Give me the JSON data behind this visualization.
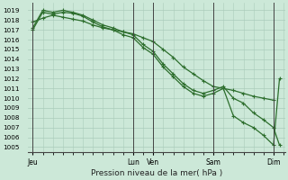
{
  "background_color": "#cce8d8",
  "grid_color": "#aaccbb",
  "line_color": "#2d6e2d",
  "title": "Pression niveau de la mer( hPa )",
  "ylabel_ticks": [
    1005,
    1006,
    1007,
    1008,
    1009,
    1010,
    1011,
    1012,
    1013,
    1014,
    1015,
    1016,
    1017,
    1018,
    1019
  ],
  "ylim": [
    1004.5,
    1019.8
  ],
  "x_day_labels": [
    "Jeu",
    "Lun",
    "Ven",
    "Sam",
    "Dim"
  ],
  "x_day_positions": [
    0,
    4.167,
    5.0,
    7.5,
    10.0
  ],
  "xlim": [
    -0.2,
    10.5
  ],
  "line1": {
    "x": [
      0,
      0.417,
      0.833,
      1.25,
      1.667,
      2.083,
      2.5,
      2.917,
      3.333,
      3.75,
      4.167,
      4.583,
      5.0,
      5.417,
      5.833,
      6.25,
      6.667,
      7.083,
      7.5,
      7.917,
      8.333,
      8.75,
      9.167,
      9.583,
      10.0
    ],
    "y": [
      1017.8,
      1018.2,
      1018.5,
      1018.3,
      1018.1,
      1017.9,
      1017.5,
      1017.2,
      1017.0,
      1016.8,
      1016.6,
      1016.2,
      1015.8,
      1015.0,
      1014.2,
      1013.2,
      1012.5,
      1011.8,
      1011.2,
      1011.0,
      1010.8,
      1010.5,
      1010.2,
      1010.0,
      1009.8
    ]
  },
  "line2": {
    "x": [
      0,
      0.417,
      0.833,
      1.25,
      1.667,
      2.083,
      2.5,
      2.917,
      3.333,
      3.75,
      4.167,
      4.583,
      5.0,
      5.417,
      5.833,
      6.25,
      6.667,
      7.083,
      7.5,
      7.917,
      8.333,
      8.75,
      9.167,
      9.583,
      10.0,
      10.25
    ],
    "y": [
      1017.2,
      1019.0,
      1018.8,
      1019.0,
      1018.8,
      1018.5,
      1018.0,
      1017.5,
      1017.2,
      1016.8,
      1016.5,
      1015.5,
      1014.8,
      1013.5,
      1012.5,
      1011.5,
      1010.8,
      1010.5,
      1010.8,
      1011.2,
      1010.0,
      1009.5,
      1008.5,
      1007.8,
      1007.0,
      1005.2
    ]
  },
  "line3": {
    "x": [
      0,
      0.417,
      0.833,
      1.25,
      1.667,
      2.083,
      2.5,
      2.917,
      3.333,
      3.75,
      4.167,
      4.583,
      5.0,
      5.417,
      5.833,
      6.25,
      6.667,
      7.083,
      7.5,
      7.917,
      8.333,
      8.75,
      9.167,
      9.583,
      10.0,
      10.25
    ],
    "y": [
      1017.0,
      1018.8,
      1018.6,
      1018.8,
      1018.7,
      1018.4,
      1017.8,
      1017.3,
      1017.0,
      1016.5,
      1016.2,
      1015.2,
      1014.5,
      1013.2,
      1012.2,
      1011.2,
      1010.5,
      1010.2,
      1010.5,
      1011.0,
      1008.2,
      1007.5,
      1007.0,
      1006.2,
      1005.2,
      1012.0
    ]
  }
}
